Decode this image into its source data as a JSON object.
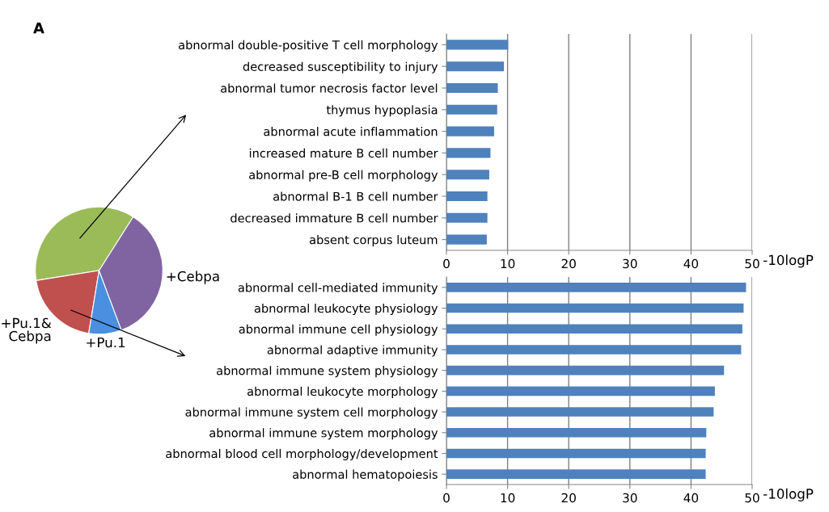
{
  "chart_data": [
    {
      "type": "pie",
      "categories": [
        null,
        "+Pu.1&\nCebpa",
        "+Pu.1",
        "+Cebpa"
      ],
      "values": [
        36.5,
        19.9,
        8.3,
        35.3
      ],
      "colors": [
        "#9bbb59",
        "#c0504d",
        "#4a8fe0",
        "#8064a2"
      ],
      "annotations": [
        "A"
      ]
    },
    {
      "type": "bar",
      "orientation": "horizontal",
      "categories": [
        "abnormal double-positive T cell morphology",
        "decreased susceptibility to injury",
        "abnormal tumor necrosis factor level",
        "thymus hypoplasia",
        "abnormal acute inflammation",
        "increased mature B cell number",
        "abnormal pre-B cell morphology",
        "abnormal B-1 B cell number",
        "decreased immature B cell number",
        "absent corpus luteum"
      ],
      "values": [
        10.1,
        9.4,
        8.4,
        8.3,
        7.8,
        7.2,
        7.0,
        6.7,
        6.7,
        6.6
      ],
      "color": "#4f81bd",
      "xlim": [
        0,
        50
      ],
      "xticks": [
        0,
        10,
        20,
        30,
        40,
        50
      ],
      "xlabel": "-10logP",
      "grid": "x",
      "legend": false
    },
    {
      "type": "bar",
      "orientation": "horizontal",
      "categories": [
        "abnormal cell-mediated immunity",
        "abnormal leukocyte physiology",
        "abnormal immune cell physiology",
        "abnormal adaptive immunity",
        "abnormal immune system physiology",
        "abnormal leukocyte morphology",
        "abnormal immune system cell morphology",
        "abnormal immune system morphology",
        "abnormal blood cell morphology/development",
        "abnormal hematopoiesis"
      ],
      "values": [
        49.0,
        48.6,
        48.4,
        48.2,
        45.4,
        43.9,
        43.7,
        42.5,
        42.4,
        42.4
      ],
      "color": "#4f81bd",
      "xlim": [
        0,
        50
      ],
      "xticks": [
        0,
        10,
        20,
        30,
        40,
        50
      ],
      "xlabel": "-10logP",
      "grid": "x",
      "legend": false
    }
  ]
}
